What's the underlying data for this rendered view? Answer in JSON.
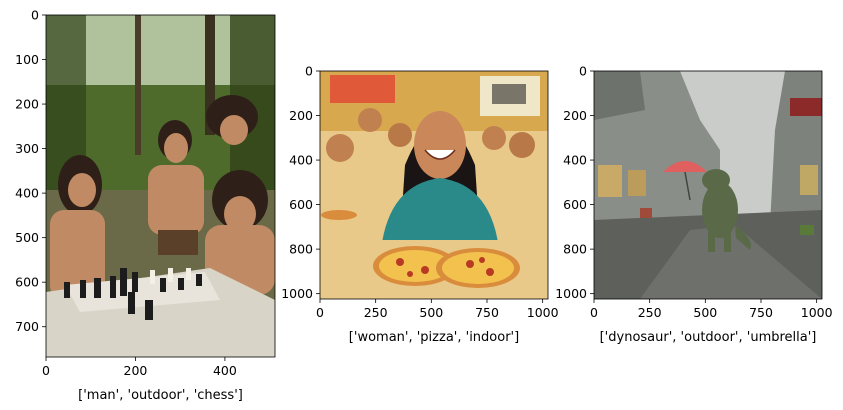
{
  "chart_data": [
    {
      "type": "image",
      "xlabel": "['man', 'outdoor', 'chess']",
      "ylabel": "",
      "image_width": 512,
      "image_height": 768,
      "xlim": [
        0,
        512
      ],
      "ylim": [
        768,
        0
      ],
      "xticks": [
        0,
        200,
        400
      ],
      "yticks": [
        0,
        100,
        200,
        300,
        400,
        500,
        600,
        700
      ],
      "scene": "forest"
    },
    {
      "type": "image",
      "xlabel": "['woman', 'pizza', 'indoor']",
      "ylabel": "",
      "image_width": 1024,
      "image_height": 1024,
      "xlim": [
        0,
        1024
      ],
      "ylim": [
        1024,
        0
      ],
      "xticks": [
        0,
        250,
        500,
        750,
        1000
      ],
      "yticks": [
        0,
        200,
        400,
        600,
        800,
        1000
      ],
      "scene": "pizza"
    },
    {
      "type": "image",
      "xlabel": "['dynosaur', 'outdoor', 'umbrella']",
      "ylabel": "",
      "image_width": 1024,
      "image_height": 1024,
      "xlim": [
        0,
        1024
      ],
      "ylim": [
        1024,
        0
      ],
      "xticks": [
        0,
        250,
        500,
        750,
        1000
      ],
      "yticks": [
        0,
        200,
        400,
        600,
        800,
        1000
      ],
      "scene": "street"
    }
  ],
  "colors": {
    "forest_sky": "#c8d8b8",
    "forest_green": "#4f6b2c",
    "forest_dark": "#2f4218",
    "skin": "#c08a64",
    "hair": "#2e2018",
    "table": "#d9d4c8",
    "pizza_bg": "#e8c98a",
    "pizza_wall": "#d8a84e",
    "shirt": "#2a8a8a",
    "woman_skin": "#c9875a",
    "pizza_crust": "#d98c3c",
    "pizza_top": "#f2c14e",
    "street_sky": "#c9ccc8",
    "street_wall": "#8a8e88",
    "street_road": "#5e605c",
    "dino": "#5a6a48",
    "umbrella": "#e06060"
  }
}
